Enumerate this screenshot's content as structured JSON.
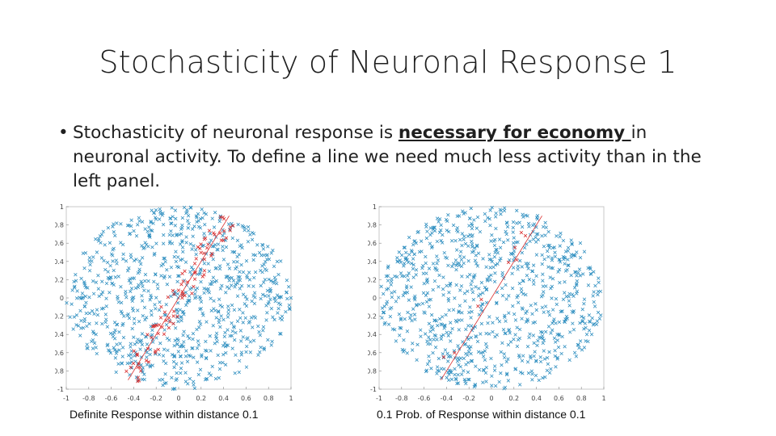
{
  "slide": {
    "title": "Stochasticity of Neuronal Response 1",
    "bullet_prefix": "Stochasticity of neuronal response is ",
    "bullet_emphasis": "necessary for economy ",
    "bullet_suffix": "in neuronal activity. To define a line we need much less activity than in the left panel."
  },
  "chart_data": [
    {
      "type": "scatter",
      "caption": "Definite Response within distance 0.1",
      "xlim": [
        -1,
        1
      ],
      "ylim": [
        -1,
        1
      ],
      "xticks": [
        "-1",
        "-0.8",
        "-0.6",
        "-0.4",
        "-0.2",
        "0",
        "0.2",
        "0.4",
        "0.6",
        "0.8",
        "1"
      ],
      "yticks": [
        "1",
        "0.8",
        "0.6",
        "0.4",
        "0.2",
        "0",
        "-0.2",
        "-0.4",
        "-0.6",
        "-0.8",
        "-1"
      ],
      "line": {
        "x": [
          -0.45,
          0.45
        ],
        "y": [
          -0.9,
          0.9
        ]
      },
      "series": [
        {
          "marker": "x",
          "color": "#2f8fc0",
          "count": 900
        },
        {
          "marker": "x",
          "color": "#d92b2b",
          "count": 90,
          "within_distance": 0.1,
          "response_prob": 1.0
        }
      ]
    },
    {
      "type": "scatter",
      "caption": "0.1 Prob. of Response within distance 0.1",
      "xlim": [
        -1,
        1
      ],
      "ylim": [
        -1,
        1
      ],
      "xticks": [
        "-1",
        "-0.8",
        "-0.6",
        "-0.4",
        "-0.2",
        "0",
        "0.2",
        "0.4",
        "0.6",
        "0.8",
        "1"
      ],
      "yticks": [
        "1",
        "0.8",
        "0.6",
        "0.4",
        "0.2",
        "0",
        "-0.2",
        "-0.4",
        "-0.6",
        "-0.8",
        "-1"
      ],
      "line": {
        "x": [
          -0.45,
          0.45
        ],
        "y": [
          -0.9,
          0.9
        ]
      },
      "series": [
        {
          "marker": "x",
          "color": "#2f8fc0",
          "count": 900
        },
        {
          "marker": "x",
          "color": "#d92b2b",
          "count": 9,
          "within_distance": 0.1,
          "response_prob": 0.1
        }
      ]
    }
  ]
}
